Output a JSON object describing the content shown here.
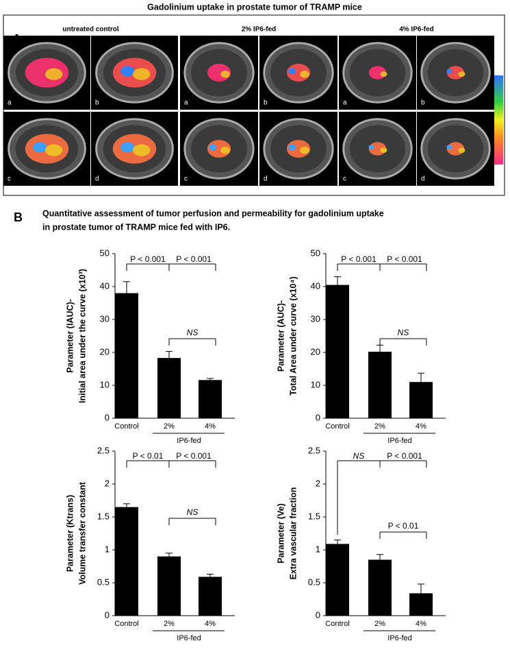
{
  "title": "Gadolinium uptake in prostate tumor of TRAMP mice",
  "panel_a": {
    "label": "A",
    "groups": [
      {
        "title": "untreated control",
        "images": [
          "a",
          "b",
          "c",
          "d"
        ]
      },
      {
        "title": "2% IP6-fed",
        "images": [
          "a",
          "b",
          "c",
          "d"
        ]
      },
      {
        "title": "4% IP6-fed",
        "images": [
          "a",
          "b",
          "c",
          "d"
        ]
      }
    ]
  },
  "panel_b": {
    "label": "B",
    "heading": [
      "Quantitative assessment of tumor perfusion and permeability for gadolinium uptake",
      "in prostate tumor of TRAMP mice fed with IP6."
    ]
  },
  "chart_data": [
    {
      "type": "bar",
      "ylabel": [
        "Parameter (IAUC)-",
        "Initial area under the curve (x10³)"
      ],
      "categories": [
        "Control",
        "2%",
        "4%"
      ],
      "group_label": "IP6-fed",
      "values": [
        38,
        18.3,
        11.6
      ],
      "errors": [
        3.5,
        2,
        0.5
      ],
      "color": "#000000",
      "ylim": [
        0,
        50
      ],
      "yticks": [
        0,
        10,
        20,
        30,
        40,
        50
      ],
      "annotations": [
        "P < 0.001",
        "P < 0.001",
        "NS"
      ]
    },
    {
      "type": "bar",
      "ylabel": [
        "Parameter (AUC)-",
        "Total Area under curve (x10⁴)"
      ],
      "categories": [
        "Control",
        "2%",
        "4%"
      ],
      "group_label": "IP6-fed",
      "values": [
        40.5,
        20.2,
        11
      ],
      "errors": [
        2.5,
        2,
        2.7
      ],
      "color": "#000000",
      "ylim": [
        0,
        50
      ],
      "yticks": [
        0,
        10,
        20,
        30,
        40,
        50
      ],
      "annotations": [
        "P < 0.001",
        "P < 0.001",
        "NS"
      ]
    },
    {
      "type": "bar",
      "ylabel": [
        "Parameter (Ktrans)",
        "Volume transfer constant"
      ],
      "categories": [
        "Control",
        "2%",
        "4%"
      ],
      "group_label": "IP6-fed",
      "values": [
        1.65,
        0.9,
        0.59
      ],
      "errors": [
        0.05,
        0.05,
        0.04
      ],
      "color": "#000000",
      "ylim": [
        0,
        2.5
      ],
      "yticks": [
        0,
        0.5,
        1,
        1.5,
        2,
        2.5
      ],
      "annotations": [
        "P < 0.01",
        "P < 0.001",
        "NS"
      ]
    },
    {
      "type": "bar",
      "ylabel": [
        "Parameter (Ve)",
        "Extra vascular fraction"
      ],
      "categories": [
        "Control",
        "2%",
        "4%"
      ],
      "group_label": "IP6-fed",
      "values": [
        1.09,
        0.85,
        0.34
      ],
      "errors": [
        0.06,
        0.08,
        0.14
      ],
      "color": "#000000",
      "ylim": [
        0,
        2.5
      ],
      "yticks": [
        0,
        0.5,
        1,
        1.5,
        2,
        2.5
      ],
      "annotations": [
        "NS",
        "P < 0.001",
        "P < 0.01"
      ]
    }
  ]
}
